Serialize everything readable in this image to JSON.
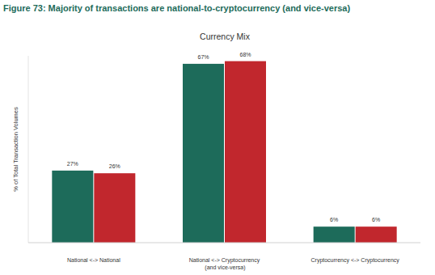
{
  "chart_data": {
    "type": "bar",
    "title": "Figure 73: Majority of transactions are national-to-cryptocurrency (and vice-versa)",
    "subtitle": "Currency Mix",
    "y_label": "% of Total Transaction Volumes",
    "categories": [
      "National <-> National",
      "National <-> Cryptocurrency (and vice-versa)",
      "Cryptocurrency <-> Cryptocurrency"
    ],
    "series": [
      {
        "color": "#1d6b5a",
        "values": [
          27,
          67,
          6
        ],
        "value_labels": [
          "27%",
          "67%",
          "6%"
        ]
      },
      {
        "color": "#c1272d",
        "values": [
          26,
          68,
          6
        ],
        "value_labels": [
          "26%",
          "68%",
          "6%"
        ]
      }
    ],
    "ylim": [
      0,
      70
    ],
    "data_labels": true,
    "tick_labels": "x",
    "grid": false
  }
}
